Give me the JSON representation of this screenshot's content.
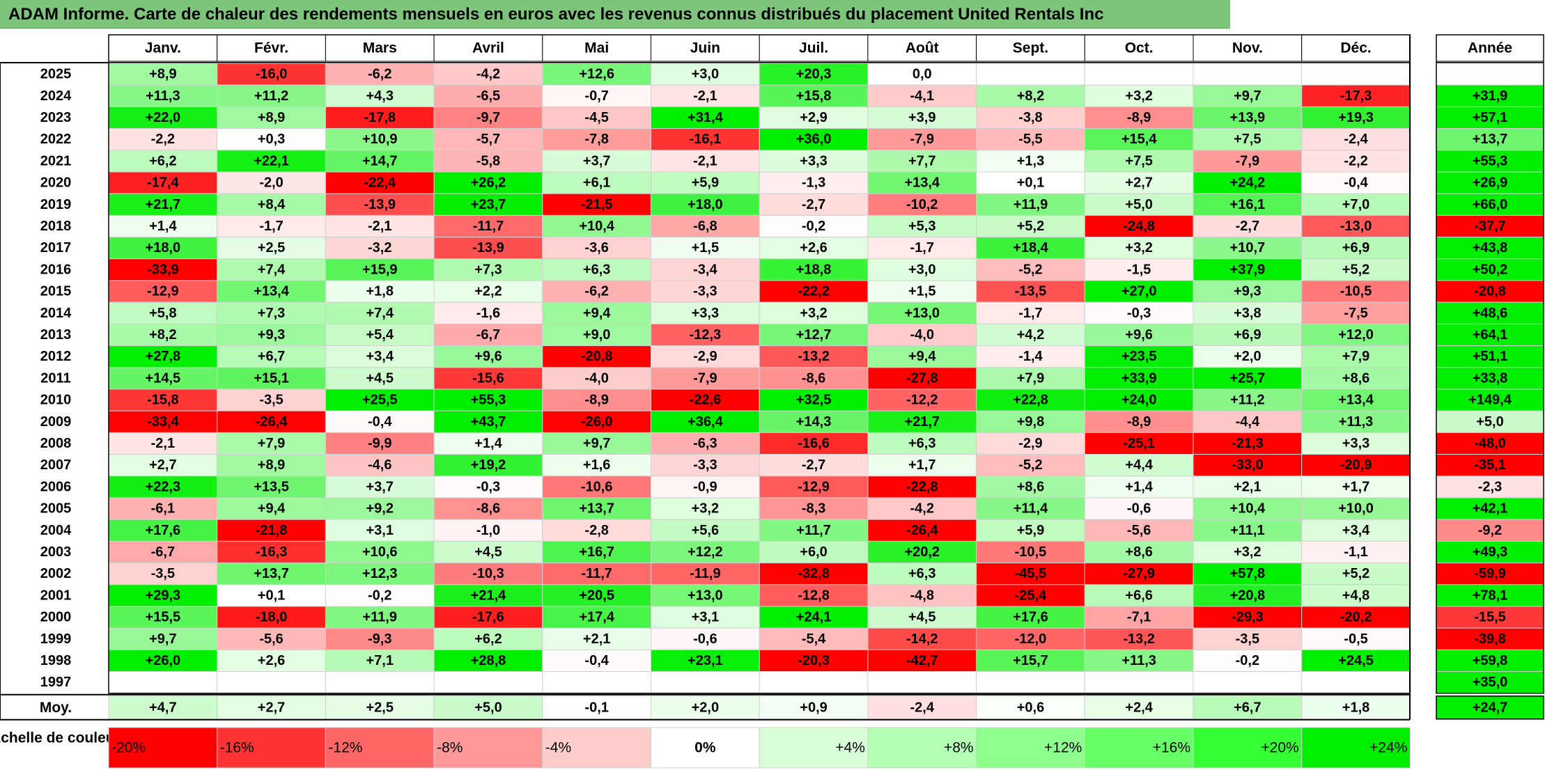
{
  "report": {
    "title": "ADAM Informe. Carte de chaleur des rendements mensuels en euros avec les revenus connus distribués du placement United Rentals Inc"
  },
  "chart_data": {
    "type": "heatmap",
    "title": "ADAM Informe. Carte de chaleur des rendements mensuels en euros avec les revenus connus distribués du placement United Rentals Inc",
    "columns": [
      "Janv.",
      "Févr.",
      "Mars",
      "Avril",
      "Mai",
      "Juin",
      "Juil.",
      "Août",
      "Sept.",
      "Oct.",
      "Nov.",
      "Déc."
    ],
    "annual_header": "Année",
    "average_label": "Moy.",
    "rows": [
      {
        "year": "2025",
        "values": [
          8.9,
          -16.0,
          -6.2,
          -4.2,
          12.6,
          3.0,
          20.3,
          0.0,
          null,
          null,
          null,
          null
        ],
        "annual": null
      },
      {
        "year": "2024",
        "values": [
          11.3,
          11.2,
          4.3,
          -6.5,
          -0.7,
          -2.1,
          15.8,
          -4.1,
          8.2,
          3.2,
          9.7,
          -17.3
        ],
        "annual": 31.9
      },
      {
        "year": "2023",
        "values": [
          22.0,
          8.9,
          -17.8,
          -9.7,
          -4.5,
          31.4,
          2.9,
          3.9,
          -3.8,
          -8.9,
          13.9,
          19.3
        ],
        "annual": 57.1
      },
      {
        "year": "2022",
        "values": [
          -2.2,
          0.3,
          10.9,
          -5.7,
          -7.8,
          -16.1,
          36.0,
          -7.9,
          -5.5,
          15.4,
          7.5,
          -2.4
        ],
        "annual": 13.7
      },
      {
        "year": "2021",
        "values": [
          6.2,
          22.1,
          14.7,
          -5.8,
          3.7,
          -2.1,
          3.3,
          7.7,
          1.3,
          7.5,
          -7.9,
          -2.2
        ],
        "annual": 55.3
      },
      {
        "year": "2020",
        "values": [
          -17.4,
          -2.0,
          -22.4,
          26.2,
          6.1,
          5.9,
          -1.3,
          13.4,
          0.1,
          2.7,
          24.2,
          -0.4
        ],
        "annual": 26.9
      },
      {
        "year": "2019",
        "values": [
          21.7,
          8.4,
          -13.9,
          23.7,
          -21.5,
          18.0,
          -2.7,
          -10.2,
          11.9,
          5.0,
          16.1,
          7.0
        ],
        "annual": 66.0
      },
      {
        "year": "2018",
        "values": [
          1.4,
          -1.7,
          -2.1,
          -11.7,
          10.4,
          -6.8,
          -0.2,
          5.3,
          5.2,
          -24.8,
          -2.7,
          -13.0
        ],
        "annual": -37.7
      },
      {
        "year": "2017",
        "values": [
          18.0,
          2.5,
          -3.2,
          -13.9,
          -3.6,
          1.5,
          2.6,
          -1.7,
          18.4,
          3.2,
          10.7,
          6.9
        ],
        "annual": 43.8
      },
      {
        "year": "2016",
        "values": [
          -33.9,
          7.4,
          15.9,
          7.3,
          6.3,
          -3.4,
          18.8,
          3.0,
          -5.2,
          -1.5,
          37.9,
          5.2
        ],
        "annual": 50.2
      },
      {
        "year": "2015",
        "values": [
          -12.9,
          13.4,
          1.8,
          2.2,
          -6.2,
          -3.3,
          -22.2,
          1.5,
          -13.5,
          27.0,
          9.3,
          -10.5
        ],
        "annual": -20.8
      },
      {
        "year": "2014",
        "values": [
          5.8,
          7.3,
          7.4,
          -1.6,
          9.4,
          3.3,
          3.2,
          13.0,
          -1.7,
          -0.3,
          3.8,
          -7.5
        ],
        "annual": 48.6
      },
      {
        "year": "2013",
        "values": [
          8.2,
          9.3,
          5.4,
          -6.7,
          9.0,
          -12.3,
          12.7,
          -4.0,
          4.2,
          9.6,
          6.9,
          12.0
        ],
        "annual": 64.1
      },
      {
        "year": "2012",
        "values": [
          27.8,
          6.7,
          3.4,
          9.6,
          -20.8,
          -2.9,
          -13.2,
          9.4,
          -1.4,
          23.5,
          2.0,
          7.9
        ],
        "annual": 51.1
      },
      {
        "year": "2011",
        "values": [
          14.5,
          15.1,
          4.5,
          -15.6,
          -4.0,
          -7.9,
          -8.6,
          -27.8,
          7.9,
          33.9,
          25.7,
          8.6
        ],
        "annual": 33.8
      },
      {
        "year": "2010",
        "values": [
          -15.8,
          -3.5,
          25.5,
          55.3,
          -8.9,
          -22.6,
          32.5,
          -12.2,
          22.8,
          24.0,
          11.2,
          13.4
        ],
        "annual": 149.4
      },
      {
        "year": "2009",
        "values": [
          -33.4,
          -26.4,
          -0.4,
          43.7,
          -26.0,
          36.4,
          14.3,
          21.7,
          9.8,
          -8.9,
          -4.4,
          11.3
        ],
        "annual": 5.0
      },
      {
        "year": "2008",
        "values": [
          -2.1,
          7.9,
          -9.9,
          1.4,
          9.7,
          -6.3,
          -16.6,
          6.3,
          -2.9,
          -25.1,
          -21.3,
          3.3
        ],
        "annual": -48.0
      },
      {
        "year": "2007",
        "values": [
          2.7,
          8.9,
          -4.6,
          19.2,
          1.6,
          -3.3,
          -2.7,
          1.7,
          -5.2,
          4.4,
          -33.0,
          -20.9
        ],
        "annual": -35.1
      },
      {
        "year": "2006",
        "values": [
          22.3,
          13.5,
          3.7,
          -0.3,
          -10.6,
          -0.9,
          -12.9,
          -22.8,
          8.6,
          1.4,
          2.1,
          1.7
        ],
        "annual": -2.3
      },
      {
        "year": "2005",
        "values": [
          -6.1,
          9.4,
          9.2,
          -8.6,
          13.7,
          3.2,
          -8.3,
          -4.2,
          11.4,
          -0.6,
          10.4,
          10.0
        ],
        "annual": 42.1
      },
      {
        "year": "2004",
        "values": [
          17.6,
          -21.8,
          3.1,
          -1.0,
          -2.8,
          5.6,
          11.7,
          -26.4,
          5.9,
          -5.6,
          11.1,
          3.4
        ],
        "annual": -9.2
      },
      {
        "year": "2003",
        "values": [
          -6.7,
          -16.3,
          10.6,
          4.5,
          16.7,
          12.2,
          6.0,
          20.2,
          -10.5,
          8.6,
          3.2,
          -1.1
        ],
        "annual": 49.3
      },
      {
        "year": "2002",
        "values": [
          -3.5,
          13.7,
          12.3,
          -10.3,
          -11.7,
          -11.9,
          -32.8,
          6.3,
          -45.5,
          -27.9,
          57.8,
          5.2
        ],
        "annual": -59.9
      },
      {
        "year": "2001",
        "values": [
          29.3,
          0.1,
          -0.2,
          21.4,
          20.5,
          13.0,
          -12.8,
          -4.8,
          -25.4,
          6.6,
          20.8,
          4.8
        ],
        "annual": 78.1
      },
      {
        "year": "2000",
        "values": [
          15.5,
          -18.0,
          11.9,
          -17.6,
          17.4,
          3.1,
          24.1,
          4.5,
          17.6,
          -7.1,
          -29.3,
          -20.2
        ],
        "annual": -15.5
      },
      {
        "year": "1999",
        "values": [
          9.7,
          -5.6,
          -9.3,
          6.2,
          2.1,
          -0.6,
          -5.4,
          -14.2,
          -12.0,
          -13.2,
          -3.5,
          -0.5
        ],
        "annual": -39.8
      },
      {
        "year": "1998",
        "values": [
          26.0,
          2.6,
          7.1,
          28.8,
          -0.4,
          23.1,
          -20.3,
          -42.7,
          15.7,
          11.3,
          -0.2,
          24.5
        ],
        "annual": 59.8
      },
      {
        "year": "1997",
        "values": [
          null,
          null,
          null,
          null,
          null,
          null,
          null,
          null,
          null,
          null,
          null,
          null
        ],
        "annual": 35.0
      }
    ],
    "averages": [
      4.7,
      2.7,
      2.5,
      5.0,
      -0.1,
      2.0,
      0.9,
      -2.4,
      0.6,
      2.4,
      6.7,
      1.8
    ],
    "average_annual": 24.7,
    "color_scale": {
      "label": "Echelle de couleur",
      "steps": [
        "-20%",
        "-16%",
        "-12%",
        "-8%",
        "-4%",
        "0%",
        "+4%",
        "+8%",
        "+12%",
        "+16%",
        "+20%",
        "+24%"
      ],
      "colors": [
        "#ff0000",
        "#ff3333",
        "#ff6666",
        "#ff9999",
        "#ffcccc",
        "#ffffff",
        "#d9ffd9",
        "#b3ffb3",
        "#8cff8c",
        "#66ff66",
        "#33ff33",
        "#00ee00"
      ]
    },
    "colors": {
      "negative_max": "#ff0000",
      "neutral": "#ffffff",
      "positive_max": "#00ee00",
      "title_bar": "#7cc57a"
    }
  }
}
